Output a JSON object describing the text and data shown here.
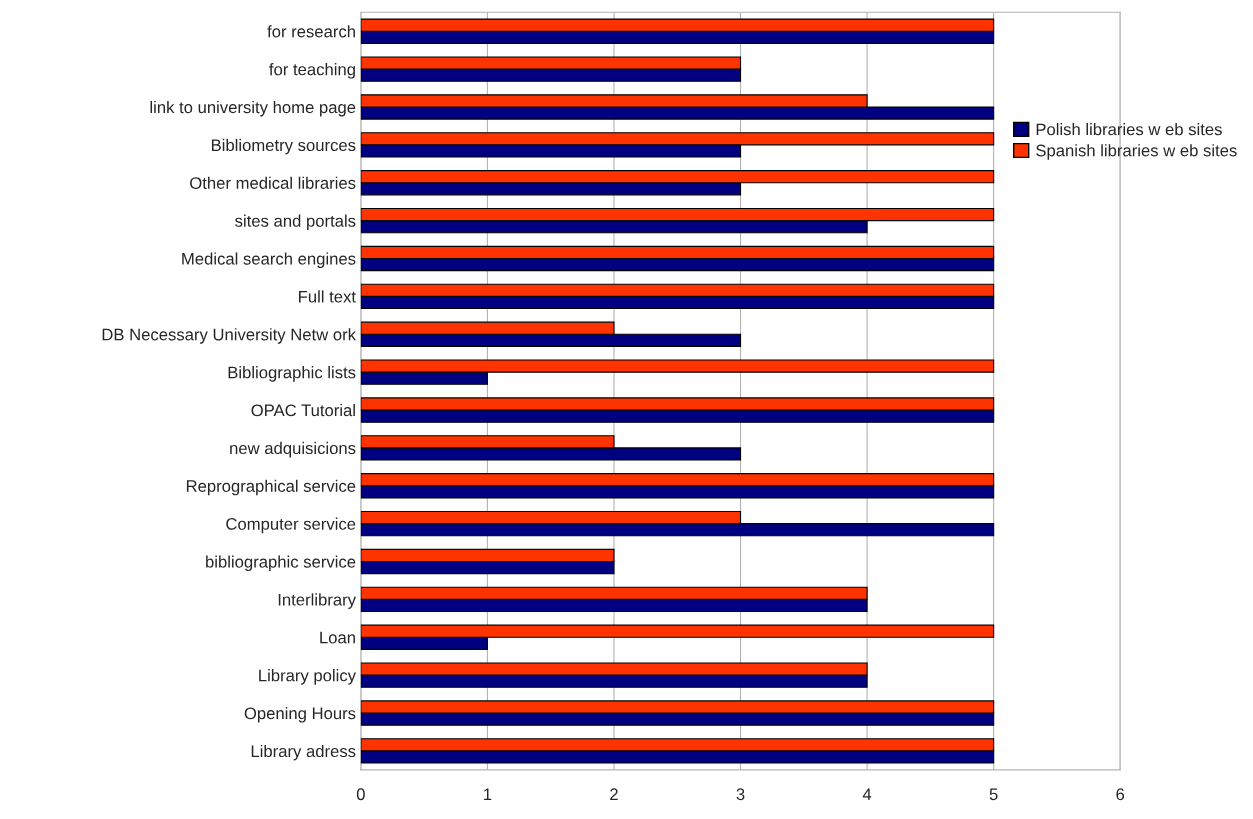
{
  "chart_data": {
    "type": "bar",
    "orientation": "horizontal",
    "categories": [
      "for research",
      "for teaching",
      "link to university home page",
      "Bibliometry sources",
      "Other medical libraries",
      "sites and portals",
      "Medical search engines",
      "Full text",
      "DB Necessary University Netw ork",
      "Bibliographic lists",
      "OPAC Tutorial",
      "new adquisicions",
      "Reprographical service",
      "Computer service",
      "bibliographic service",
      "Interlibrary",
      "Loan",
      "Library policy",
      "Opening Hours",
      "Library adress"
    ],
    "series": [
      {
        "name": "Polish libraries w eb sites",
        "color": "#000080",
        "values": [
          5,
          3,
          5,
          3,
          3,
          4,
          5,
          5,
          3,
          1,
          5,
          3,
          5,
          5,
          2,
          4,
          1,
          4,
          5,
          5
        ]
      },
      {
        "name": "Spanish libraries w eb sites",
        "color": "#ff3300",
        "values": [
          5,
          3,
          4,
          5,
          5,
          5,
          5,
          5,
          2,
          5,
          5,
          2,
          5,
          3,
          2,
          4,
          5,
          4,
          5,
          5
        ]
      }
    ],
    "xlim": [
      0,
      6
    ],
    "xticks": [
      0,
      1,
      2,
      3,
      4,
      5,
      6
    ],
    "grid": "x",
    "legend": "right"
  }
}
